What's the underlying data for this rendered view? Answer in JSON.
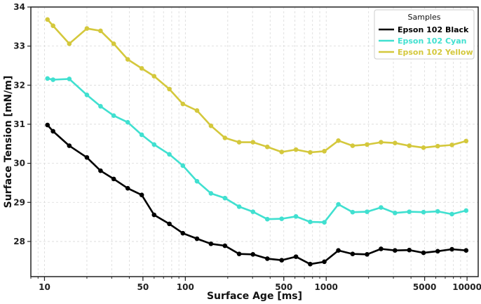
{
  "chart_data": {
    "type": "line",
    "title": "",
    "xlabel": "Surface Age [ms]",
    "ylabel": "Surface Tension [mN/m]",
    "xscale": "log",
    "xlim": [
      8,
      12000
    ],
    "ylim": [
      27.1,
      34
    ],
    "grid": true,
    "xticks": [
      {
        "value": 10,
        "label": "10"
      },
      {
        "value": 50,
        "label": "50"
      },
      {
        "value": 100,
        "label": "100"
      },
      {
        "value": 500,
        "label": "500"
      },
      {
        "value": 1000,
        "label": "1000"
      },
      {
        "value": 5000,
        "label": "5000"
      },
      {
        "value": 10000,
        "label": "10000"
      }
    ],
    "yticks": [
      {
        "value": 28,
        "label": "28"
      },
      {
        "value": 29,
        "label": "29"
      },
      {
        "value": 30,
        "label": "30"
      },
      {
        "value": 31,
        "label": "31"
      },
      {
        "value": 32,
        "label": "32"
      },
      {
        "value": 33,
        "label": "33"
      },
      {
        "value": 34,
        "label": "34"
      }
    ],
    "legend": {
      "title": "Samples",
      "position": "top-right"
    },
    "x": [
      10.5,
      11.5,
      15,
      20,
      25,
      31,
      39,
      49,
      60,
      77,
      96,
      121,
      152,
      191,
      241,
      302,
      382,
      483,
      610,
      770,
      970,
      1220,
      1540,
      1950,
      2450,
      3080,
      3890,
      4910,
      6190,
      7810,
      9850
    ],
    "series": [
      {
        "name": "Epson 102 Black",
        "color": "#000000",
        "values": [
          30.98,
          30.82,
          30.45,
          30.15,
          29.81,
          29.6,
          29.36,
          29.19,
          28.68,
          28.45,
          28.21,
          28.07,
          27.94,
          27.89,
          27.68,
          27.67,
          27.56,
          27.52,
          27.61,
          27.42,
          27.48,
          27.77,
          27.68,
          27.67,
          27.81,
          27.77,
          27.78,
          27.71,
          27.75,
          27.8,
          27.77
        ]
      },
      {
        "name": "Epson 102 Cyan",
        "color": "#40e0d0",
        "values": [
          32.17,
          32.14,
          32.16,
          31.75,
          31.46,
          31.22,
          31.05,
          30.73,
          30.48,
          30.23,
          29.94,
          29.54,
          29.23,
          29.11,
          28.89,
          28.76,
          28.57,
          28.58,
          28.64,
          28.5,
          28.49,
          28.95,
          28.75,
          28.76,
          28.87,
          28.73,
          28.76,
          28.75,
          28.77,
          28.7,
          28.79
        ]
      },
      {
        "name": "Epson 102 Yellow",
        "color": "#d4c83c",
        "values": [
          33.68,
          33.52,
          33.06,
          33.45,
          33.39,
          33.06,
          32.66,
          32.43,
          32.23,
          31.9,
          31.52,
          31.35,
          30.96,
          30.65,
          30.54,
          30.54,
          30.42,
          30.29,
          30.35,
          30.28,
          30.31,
          30.58,
          30.45,
          30.48,
          30.54,
          30.52,
          30.45,
          30.4,
          30.44,
          30.47,
          30.57
        ]
      }
    ]
  }
}
